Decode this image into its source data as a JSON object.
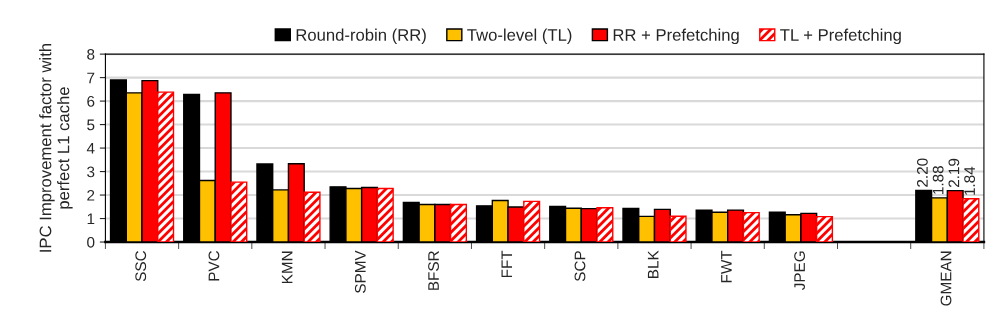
{
  "chart_data": {
    "type": "bar",
    "ylabel": "IPC Improvement factor with\nperfect L1 cache",
    "categories": [
      "SSC",
      "PVC",
      "KMN",
      "SPMV",
      "BFSR",
      "FFT",
      "SCP",
      "BLK",
      "FWT",
      "JPEG",
      null,
      "GMEAN"
    ],
    "series": [
      {
        "name": "Round-robin (RR)",
        "color": "#000000",
        "values": [
          6.9,
          6.28,
          3.32,
          2.35,
          1.69,
          1.54,
          1.52,
          1.43,
          1.35,
          1.27,
          null,
          2.2
        ],
        "value_labels": [
          null,
          null,
          null,
          null,
          null,
          null,
          null,
          null,
          null,
          null,
          null,
          "2.20"
        ]
      },
      {
        "name": "Two-level (TL)",
        "color": "#ffc000",
        "values": [
          6.35,
          2.62,
          2.22,
          2.28,
          1.6,
          1.77,
          1.44,
          1.09,
          1.27,
          1.16,
          null,
          1.88
        ],
        "value_labels": [
          null,
          null,
          null,
          null,
          null,
          null,
          null,
          null,
          null,
          null,
          null,
          "1.88"
        ]
      },
      {
        "name": "RR + Prefetching",
        "color": "#ff0000",
        "values": [
          6.87,
          6.35,
          3.33,
          2.32,
          1.6,
          1.49,
          1.42,
          1.39,
          1.36,
          1.22,
          null,
          2.19
        ],
        "value_labels": [
          null,
          null,
          null,
          null,
          null,
          null,
          null,
          null,
          null,
          null,
          null,
          "2.19"
        ]
      },
      {
        "name": "TL + Prefetching",
        "color": "#ff0000",
        "values": [
          6.38,
          2.55,
          2.12,
          2.28,
          1.6,
          1.73,
          1.46,
          1.1,
          1.25,
          1.08,
          null,
          1.84
        ],
        "value_labels": [
          null,
          null,
          null,
          null,
          null,
          null,
          null,
          null,
          null,
          null,
          null,
          "1.84"
        ]
      }
    ],
    "ylim": [
      0,
      8
    ],
    "yticks": [
      0,
      1,
      2,
      3,
      4,
      5,
      6,
      7,
      8
    ],
    "grid": "y",
    "legend": "top"
  }
}
